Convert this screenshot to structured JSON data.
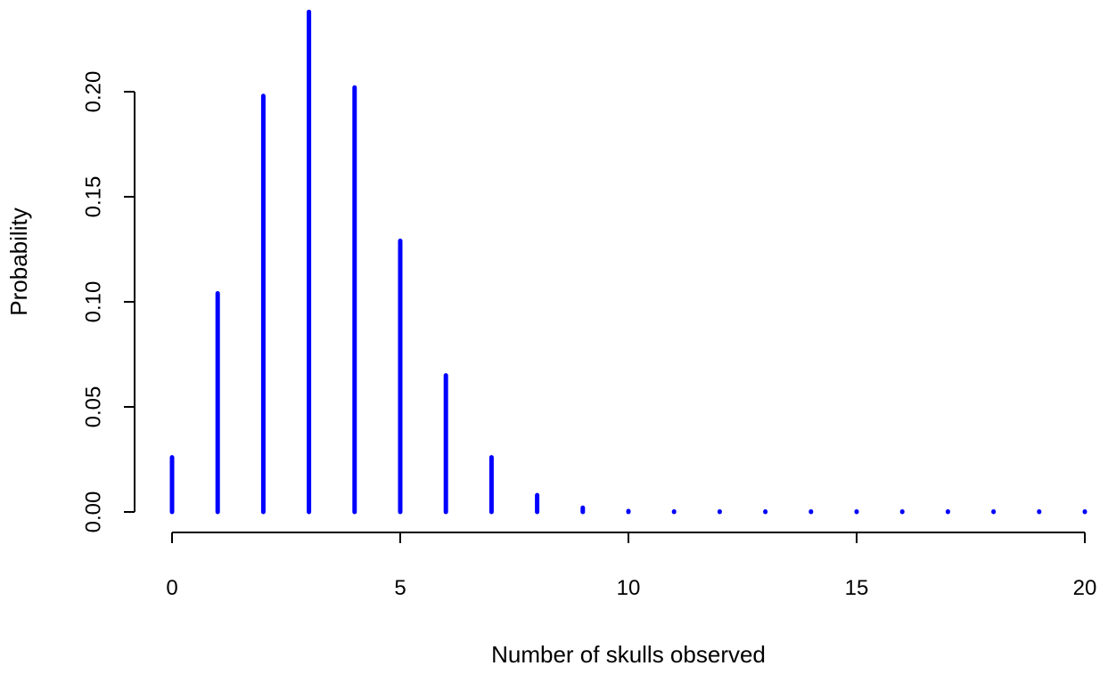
{
  "chart_data": {
    "type": "bar",
    "style": "spike-pmf",
    "x": [
      0,
      1,
      2,
      3,
      4,
      5,
      6,
      7,
      8,
      9,
      10,
      11,
      12,
      13,
      14,
      15,
      16,
      17,
      18,
      19,
      20
    ],
    "values": [
      0.026,
      0.104,
      0.198,
      0.238,
      0.202,
      0.129,
      0.065,
      0.026,
      0.008,
      0.002,
      0.0004,
      0.0001,
      0.0,
      0.0,
      0.0,
      0.0,
      0.0,
      0.0,
      0.0,
      0.0,
      0.0
    ],
    "xlabel": "Number of skulls observed",
    "ylabel": "Probability",
    "xlim": [
      0,
      20
    ],
    "ylim": [
      0,
      0.24
    ],
    "x_ticks": [
      0,
      5,
      10,
      15,
      20
    ],
    "x_tick_labels": [
      "0",
      "5",
      "10",
      "15",
      "20"
    ],
    "y_ticks": [
      0.0,
      0.05,
      0.1,
      0.15,
      0.2
    ],
    "y_tick_labels": [
      "0.00",
      "0.05",
      "0.10",
      "0.15",
      "0.20"
    ],
    "grid": false,
    "legend": "none",
    "bar_color": "#0000ff"
  }
}
